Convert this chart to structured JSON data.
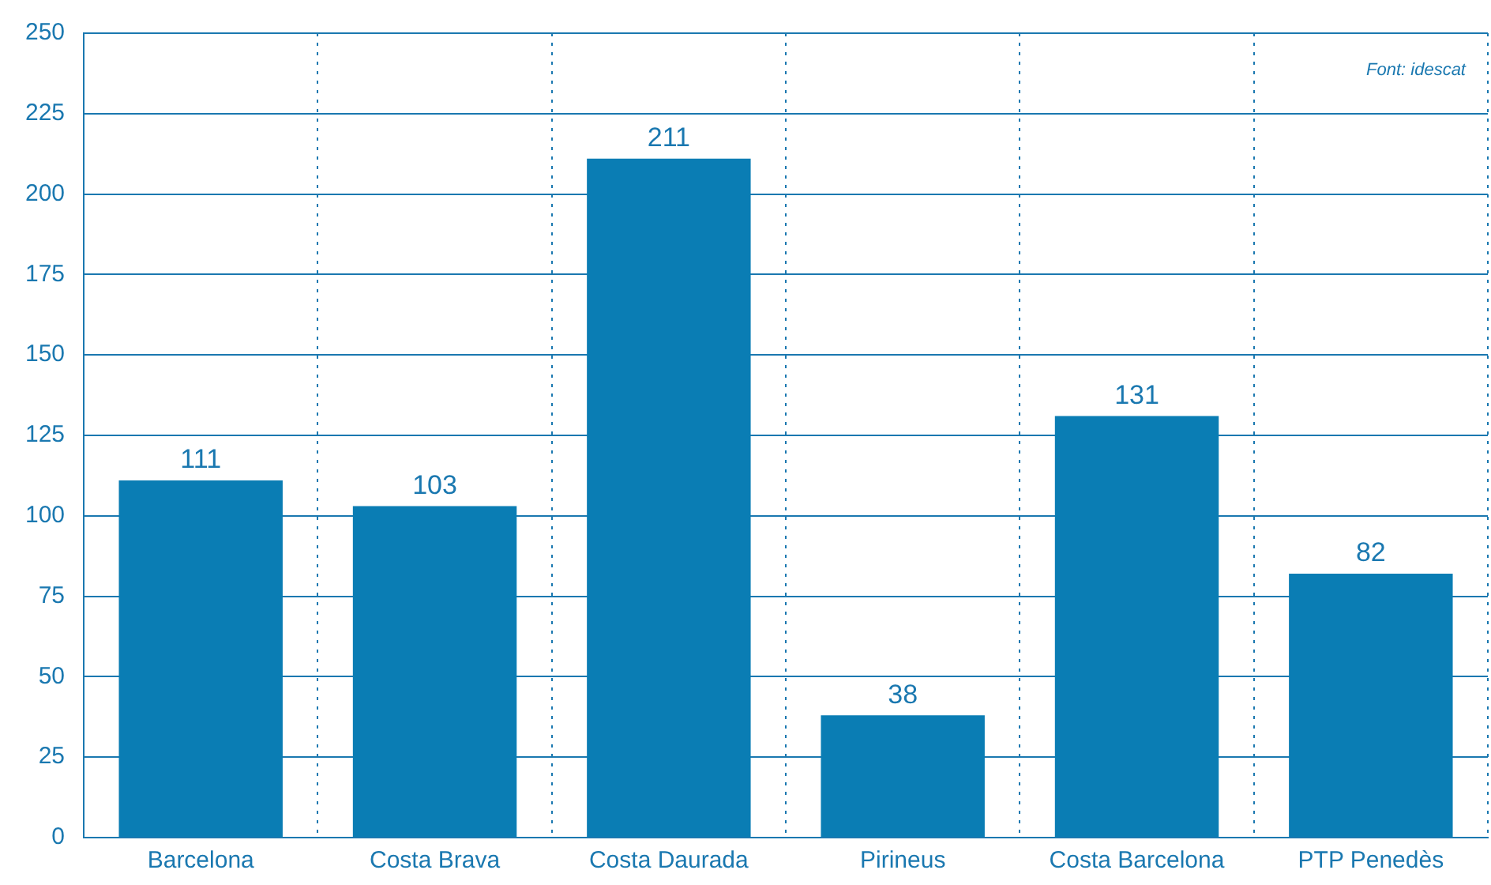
{
  "chart_data": {
    "type": "bar",
    "categories": [
      "Barcelona",
      "Costa Brava",
      "Costa Daurada",
      "Pirineus",
      "Costa Barcelona",
      "PTP Penedès"
    ],
    "values": [
      111,
      103,
      211,
      38,
      131,
      82
    ],
    "color": "#0a7db4",
    "ylim": [
      0,
      250
    ],
    "yticks": [
      0,
      25,
      50,
      75,
      100,
      125,
      150,
      175,
      200,
      225,
      250
    ],
    "grid": true,
    "data_labels": true,
    "annotations": [
      "Font: idescat"
    ]
  }
}
